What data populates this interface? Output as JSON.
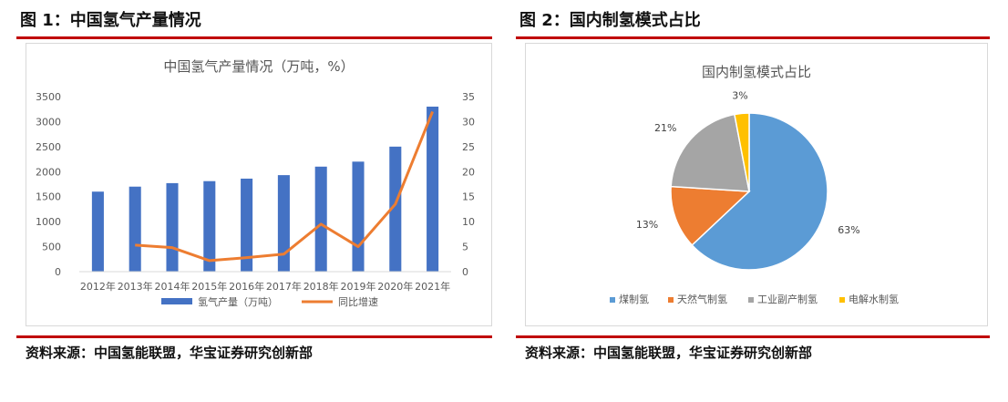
{
  "left_panel": {
    "figure_title": "图 1：中国氢气产量情况",
    "source": "资料来源：中国氢能联盟，华宝证券研究创新部"
  },
  "right_panel": {
    "figure_title": "图 2：国内制氢模式占比",
    "source": "资料来源：中国氢能联盟，华宝证券研究创新部"
  },
  "chart_data": [
    {
      "type": "bar",
      "title": "中国氢气产量情况（万吨，%）",
      "categories": [
        "2012年",
        "2013年",
        "2014年",
        "2015年",
        "2016年",
        "2017年",
        "2018年",
        "2019年",
        "2020年",
        "2021年"
      ],
      "series": [
        {
          "name": "氢气产量（万吨）",
          "type": "bar",
          "axis": "left",
          "color": "#4472c4",
          "values": [
            1600,
            1700,
            1770,
            1810,
            1860,
            1930,
            2100,
            2200,
            2500,
            3300
          ]
        },
        {
          "name": "同比增速",
          "type": "line",
          "axis": "right",
          "color": "#ed7d31",
          "values": [
            null,
            5.3,
            4.8,
            2.2,
            2.8,
            3.5,
            9.5,
            5.0,
            13.5,
            32.0
          ]
        }
      ],
      "y_left": {
        "range": [
          0,
          3500
        ],
        "ticks": [
          "0",
          "500",
          "1000",
          "1500",
          "2000",
          "2500",
          "3000",
          "3500"
        ]
      },
      "y_right": {
        "range": [
          0,
          35
        ],
        "ticks": [
          "0",
          "5",
          "10",
          "15",
          "20",
          "25",
          "30",
          "35"
        ]
      },
      "grid": false,
      "legend_position": "bottom"
    },
    {
      "type": "pie",
      "title": "国内制氢模式占比",
      "slices": [
        {
          "name": "煤制氢",
          "value": 63,
          "label": "63%",
          "color": "#5b9bd5"
        },
        {
          "name": "天然气制氢",
          "value": 13,
          "label": "13%",
          "color": "#ed7d31"
        },
        {
          "name": "工业副产制氢",
          "value": 21,
          "label": "21%",
          "color": "#a5a5a5"
        },
        {
          "name": "电解水制氢",
          "value": 3,
          "label": "3%",
          "color": "#ffc000"
        }
      ],
      "legend_position": "bottom"
    }
  ]
}
